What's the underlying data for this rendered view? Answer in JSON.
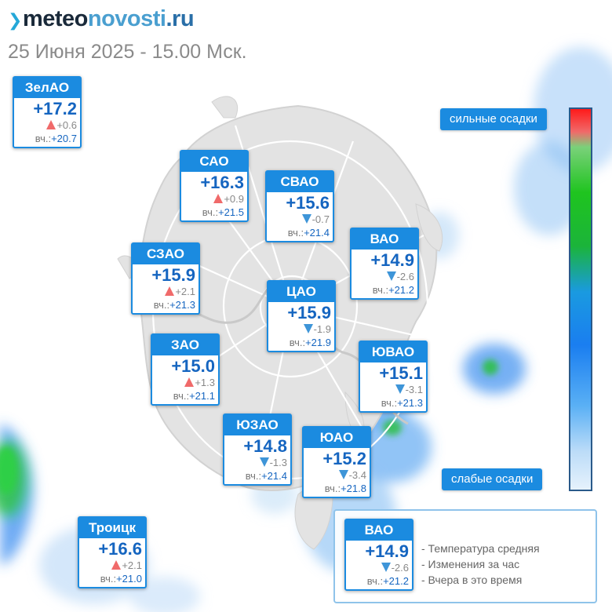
{
  "header": {
    "logo_meteo": "meteo",
    "logo_novosti": "novosti",
    "logo_tld": ".ru",
    "date": "25 Июня 2025 - 15.00 Мск."
  },
  "colors": {
    "card_blue": "#1b8be0",
    "temp_blue": "#1565c0",
    "up_arrow": "#f06a6a",
    "down_arrow": "#3e95d8"
  },
  "yesterday_label": "вч.:",
  "districts": [
    {
      "id": "zelao",
      "name": "ЗелАО",
      "temp": "+17.2",
      "trend": "up",
      "change": "+0.6",
      "yesterday": "+20.7"
    },
    {
      "id": "sao",
      "name": "САО",
      "temp": "+16.3",
      "trend": "up",
      "change": "+0.9",
      "yesterday": "+21.5"
    },
    {
      "id": "svao",
      "name": "СВАО",
      "temp": "+15.6",
      "trend": "down",
      "change": "-0.7",
      "yesterday": "+21.4"
    },
    {
      "id": "vao",
      "name": "ВАО",
      "temp": "+14.9",
      "trend": "down",
      "change": "-2.6",
      "yesterday": "+21.2"
    },
    {
      "id": "szao",
      "name": "СЗАО",
      "temp": "+15.9",
      "trend": "up",
      "change": "+2.1",
      "yesterday": "+21.3"
    },
    {
      "id": "cao",
      "name": "ЦАО",
      "temp": "+15.9",
      "trend": "down",
      "change": "-1.9",
      "yesterday": "+21.9"
    },
    {
      "id": "zao",
      "name": "ЗАО",
      "temp": "+15.0",
      "trend": "up",
      "change": "+1.3",
      "yesterday": "+21.1"
    },
    {
      "id": "yuvao",
      "name": "ЮВАО",
      "temp": "+15.1",
      "trend": "down",
      "change": "-3.1",
      "yesterday": "+21.3"
    },
    {
      "id": "yuzao",
      "name": "ЮЗАО",
      "temp": "+14.8",
      "trend": "down",
      "change": "-1.3",
      "yesterday": "+21.4"
    },
    {
      "id": "yuao",
      "name": "ЮАО",
      "temp": "+15.2",
      "trend": "down",
      "change": "-3.4",
      "yesterday": "+21.8"
    },
    {
      "id": "troitsk",
      "name": "Троицк",
      "temp": "+16.6",
      "trend": "up",
      "change": "+2.1",
      "yesterday": "+21.0"
    }
  ],
  "scale": {
    "top_label": "сильные осадки",
    "bottom_label": "слабые осадки"
  },
  "legend": {
    "sample": {
      "name": "ВАО",
      "temp": "+14.9",
      "trend": "down",
      "change": "-2.6",
      "yesterday": "+21.2"
    },
    "lines": [
      "- Температура средняя",
      "- Изменения за час",
      "- Вчера в это время"
    ]
  }
}
